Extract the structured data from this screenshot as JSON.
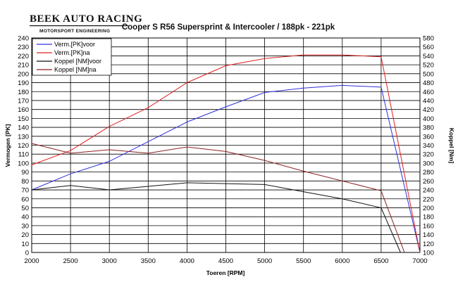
{
  "logo": {
    "main": "BEEK AUTO RACING",
    "sub": "MOTORSPORT ENGINEERING"
  },
  "chart_data": {
    "type": "line",
    "title": "Cooper S R56 Supersprint & Intercooler / 188pk  - 221pk",
    "xlabel": "Toeren [RPM]",
    "ylabel": "Vermogen [PK]",
    "y2label": "Koppel [Nm]",
    "xlim": [
      2000,
      7000
    ],
    "ylim": [
      0,
      240
    ],
    "y2lim": [
      100,
      580
    ],
    "x_ticks": [
      2000,
      2500,
      3000,
      3500,
      4000,
      4500,
      5000,
      5500,
      6000,
      6500,
      7000
    ],
    "y_ticks": [
      0,
      10,
      20,
      30,
      40,
      50,
      60,
      70,
      80,
      90,
      100,
      110,
      120,
      130,
      140,
      150,
      160,
      170,
      180,
      190,
      200,
      210,
      220,
      230,
      240
    ],
    "y2_ticks": [
      100,
      120,
      140,
      160,
      180,
      200,
      220,
      240,
      260,
      280,
      300,
      320,
      340,
      360,
      380,
      400,
      420,
      440,
      460,
      480,
      500,
      520,
      540,
      560,
      580
    ],
    "grid": true,
    "legend_position": "top-left",
    "series": [
      {
        "name": "Verm.[PK]voor",
        "color": "#3030e0",
        "axis": "left",
        "x": [
          2000,
          2500,
          3000,
          3500,
          4000,
          4500,
          5000,
          5500,
          6000,
          6500,
          7000
        ],
        "y": [
          70,
          88,
          102,
          124,
          146,
          163,
          179,
          184,
          187,
          185,
          0
        ]
      },
      {
        "name": "Verm.[PK]na",
        "color": "#e02020",
        "axis": "left",
        "x": [
          2000,
          2500,
          3000,
          3500,
          4000,
          4500,
          5000,
          5500,
          6000,
          6500,
          7000
        ],
        "y": [
          98,
          114,
          141,
          162,
          190,
          209,
          217,
          221,
          221,
          219,
          0
        ]
      },
      {
        "name": "Koppel [NM]voor",
        "color": "#111111",
        "axis": "right",
        "x": [
          2000,
          2500,
          3000,
          3500,
          4000,
          4500,
          5000,
          5500,
          6000,
          6500,
          6750
        ],
        "y": [
          240,
          250,
          240,
          248,
          256,
          254,
          252,
          236,
          220,
          200,
          100
        ]
      },
      {
        "name": "Koppel [NM]na",
        "color": "#8b2020",
        "axis": "right",
        "x": [
          2000,
          2500,
          3000,
          3500,
          4000,
          4500,
          5000,
          5500,
          6000,
          6500,
          6800
        ],
        "y": [
          344,
          322,
          330,
          322,
          336,
          326,
          306,
          282,
          260,
          238,
          100
        ]
      }
    ]
  }
}
